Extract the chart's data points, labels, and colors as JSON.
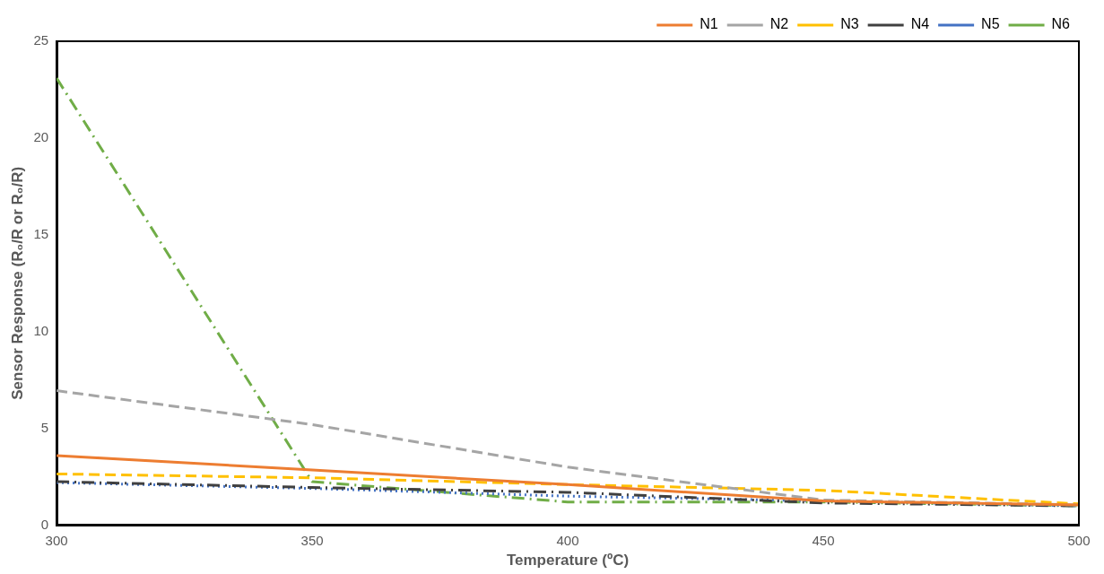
{
  "chart_data": {
    "type": "line",
    "xlabel": "Temperature (ºC)",
    "ylabel": "Sensor Response (R₀/R or R₀/R)",
    "x": [
      300,
      350,
      400,
      450,
      500
    ],
    "xlim": [
      300,
      500
    ],
    "xticks": [
      300,
      350,
      400,
      450,
      500
    ],
    "ylim": [
      0,
      25
    ],
    "yticks": [
      0,
      5,
      10,
      15,
      20,
      25
    ],
    "grid": false,
    "legend": "top right",
    "marker": "none",
    "series": [
      {
        "name": "N1",
        "color": "#ed7d31",
        "line_style": "solid",
        "values": [
          3.6,
          2.85,
          2.1,
          1.25,
          1.05
        ]
      },
      {
        "name": "N2",
        "color": "#a5a5a5",
        "line_style": "dashed",
        "values": [
          6.95,
          5.2,
          3.0,
          1.3,
          1.05
        ]
      },
      {
        "name": "N3",
        "color": "#ffc000",
        "line_style": "dashed",
        "values": [
          2.65,
          2.45,
          2.1,
          1.8,
          1.1
        ]
      },
      {
        "name": "N4",
        "color": "#404040",
        "line_style": "dashdot",
        "values": [
          2.25,
          1.95,
          1.7,
          1.15,
          1.0
        ]
      },
      {
        "name": "N5",
        "color": "#4472c4",
        "line_style": "dotted",
        "values": [
          2.2,
          1.9,
          1.5,
          1.25,
          1.0
        ]
      },
      {
        "name": "N6",
        "color": "#70ad47",
        "line_style": "dashdot",
        "values": [
          23.1,
          2.25,
          1.2,
          1.2,
          1.0
        ]
      }
    ]
  }
}
